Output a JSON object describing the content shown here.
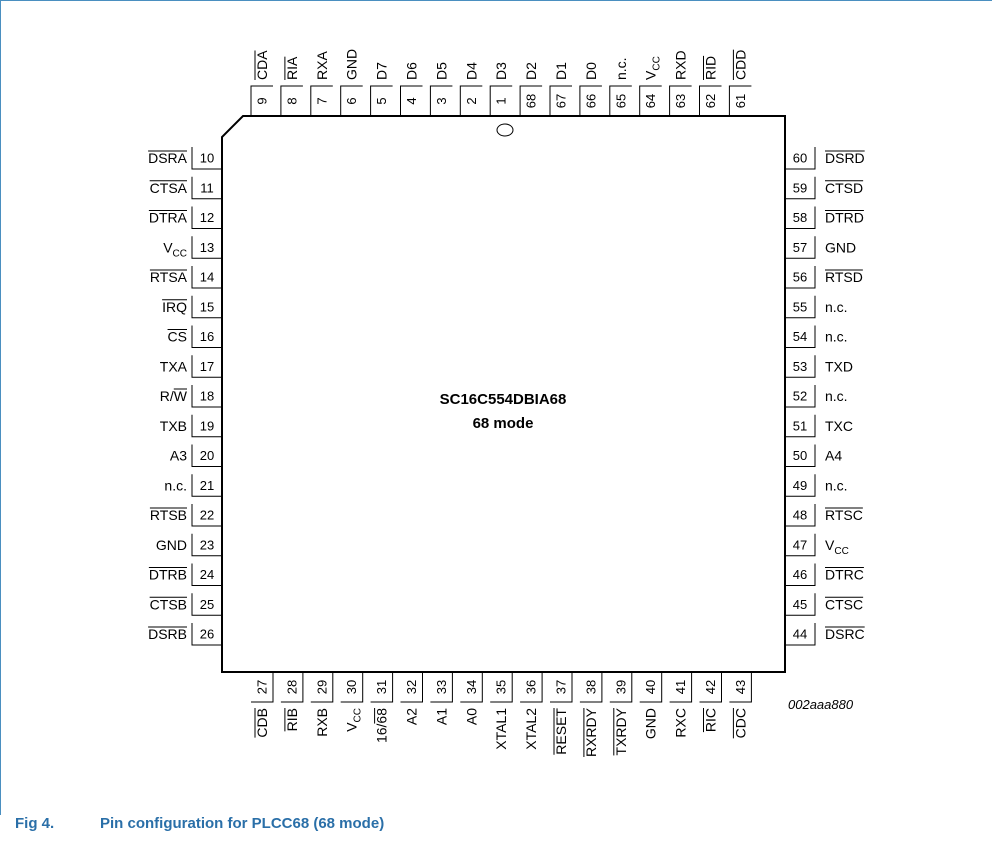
{
  "chip": {
    "part_number": "SC16C554DBIA68",
    "mode": "68 mode"
  },
  "figure_id": "002aaa880",
  "caption": {
    "number": "Fig 4.",
    "title": "Pin configuration for PLCC68 (68 mode)"
  },
  "pins": {
    "top": [
      {
        "num": "9",
        "label": "CDA",
        "bar": true
      },
      {
        "num": "8",
        "label": "RIA",
        "bar": true
      },
      {
        "num": "7",
        "label": "RXA"
      },
      {
        "num": "6",
        "label": "GND"
      },
      {
        "num": "5",
        "label": "D7"
      },
      {
        "num": "4",
        "label": "D6"
      },
      {
        "num": "3",
        "label": "D5"
      },
      {
        "num": "2",
        "label": "D4"
      },
      {
        "num": "1",
        "label": "D3"
      },
      {
        "num": "68",
        "label": "D2"
      },
      {
        "num": "67",
        "label": "D1"
      },
      {
        "num": "66",
        "label": "D0"
      },
      {
        "num": "65",
        "label": "n.c."
      },
      {
        "num": "64",
        "label": "V",
        "sub": "CC"
      },
      {
        "num": "63",
        "label": "RXD"
      },
      {
        "num": "62",
        "label": "RID",
        "bar": true
      },
      {
        "num": "61",
        "label": "CDD",
        "bar": true
      }
    ],
    "left": [
      {
        "num": "10",
        "label": "DSRA",
        "bar": true
      },
      {
        "num": "11",
        "label": "CTSA",
        "bar": true
      },
      {
        "num": "12",
        "label": "DTRA",
        "bar": true
      },
      {
        "num": "13",
        "label": "V",
        "sub": "CC"
      },
      {
        "num": "14",
        "label": "RTSA",
        "bar": true
      },
      {
        "num": "15",
        "label": "IRQ",
        "bar": true
      },
      {
        "num": "16",
        "label": "CS",
        "bar": true
      },
      {
        "num": "17",
        "label": "TXA"
      },
      {
        "num": "18",
        "label": "R/",
        "barpart": "W"
      },
      {
        "num": "19",
        "label": "TXB"
      },
      {
        "num": "20",
        "label": "A3"
      },
      {
        "num": "21",
        "label": "n.c."
      },
      {
        "num": "22",
        "label": "RTSB",
        "bar": true
      },
      {
        "num": "23",
        "label": "GND"
      },
      {
        "num": "24",
        "label": "DTRB",
        "bar": true
      },
      {
        "num": "25",
        "label": "CTSB",
        "bar": true
      },
      {
        "num": "26",
        "label": "DSRB",
        "bar": true
      }
    ],
    "right": [
      {
        "num": "60",
        "label": "DSRD",
        "bar": true
      },
      {
        "num": "59",
        "label": "CTSD",
        "bar": true
      },
      {
        "num": "58",
        "label": "DTRD",
        "bar": true
      },
      {
        "num": "57",
        "label": "GND"
      },
      {
        "num": "56",
        "label": "RTSD",
        "bar": true
      },
      {
        "num": "55",
        "label": "n.c."
      },
      {
        "num": "54",
        "label": "n.c."
      },
      {
        "num": "53",
        "label": "TXD"
      },
      {
        "num": "52",
        "label": "n.c."
      },
      {
        "num": "51",
        "label": "TXC"
      },
      {
        "num": "50",
        "label": "A4"
      },
      {
        "num": "49",
        "label": "n.c."
      },
      {
        "num": "48",
        "label": "RTSC",
        "bar": true
      },
      {
        "num": "47",
        "label": "V",
        "sub": "CC"
      },
      {
        "num": "46",
        "label": "DTRC",
        "bar": true
      },
      {
        "num": "45",
        "label": "CTSC",
        "bar": true
      },
      {
        "num": "44",
        "label": "DSRC",
        "bar": true
      }
    ],
    "bottom": [
      {
        "num": "27",
        "label": "CDB",
        "bar": true
      },
      {
        "num": "28",
        "label": "RIB",
        "bar": true
      },
      {
        "num": "29",
        "label": "RXB"
      },
      {
        "num": "30",
        "label": "V",
        "sub": "CC"
      },
      {
        "num": "31",
        "label": "16/",
        "barpart": "68"
      },
      {
        "num": "32",
        "label": "A2"
      },
      {
        "num": "33",
        "label": "A1"
      },
      {
        "num": "34",
        "label": "A0"
      },
      {
        "num": "35",
        "label": "XTAL1"
      },
      {
        "num": "36",
        "label": "XTAL2"
      },
      {
        "num": "37",
        "label": "RESET",
        "bar": true
      },
      {
        "num": "38",
        "label": "RXRDY",
        "bar": true
      },
      {
        "num": "39",
        "label": "TXRDY",
        "bar": true
      },
      {
        "num": "40",
        "label": "GND"
      },
      {
        "num": "41",
        "label": "RXC"
      },
      {
        "num": "42",
        "label": "RIC",
        "bar": true
      },
      {
        "num": "43",
        "label": "CDC",
        "bar": true
      }
    ]
  }
}
